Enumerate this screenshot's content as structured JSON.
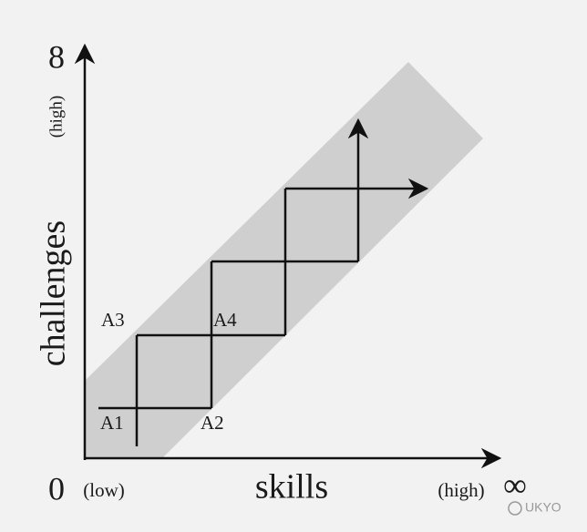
{
  "axes": {
    "y_label": "challenges",
    "y_high": "(high)",
    "y_max": "8",
    "origin": "0",
    "x_low": "(low)",
    "x_label": "skills",
    "x_high": "(high)",
    "x_max": "∞"
  },
  "nodes": [
    {
      "label": "A1"
    },
    {
      "label": "A2"
    },
    {
      "label": "A3"
    },
    {
      "label": "A4"
    }
  ],
  "watermark": "UKYO"
}
